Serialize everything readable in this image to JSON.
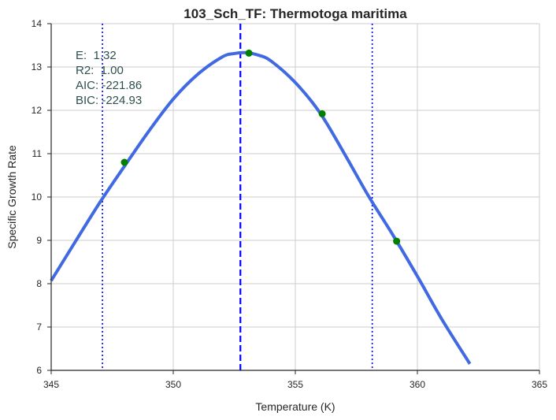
{
  "chart_data": {
    "type": "line",
    "title": "103_Sch_TF: Thermotoga maritima",
    "xlabel": "Temperature (K)",
    "ylabel": "Specific Growth Rate",
    "xlim": [
      345,
      365
    ],
    "ylim": [
      6,
      14
    ],
    "xticks": [
      "345",
      "350",
      "355",
      "360",
      "365"
    ],
    "yticks": [
      "6",
      "7",
      "8",
      "9",
      "10",
      "11",
      "12",
      "13",
      "14"
    ],
    "grid": true,
    "series": [
      {
        "kind": "fitted-curve",
        "color": "#4169e1",
        "x": [
          345.0,
          346.0,
          347.0,
          348.0,
          349.0,
          350.0,
          351.0,
          352.0,
          352.5,
          353.0,
          353.5,
          354.0,
          355.0,
          356.0,
          357.0,
          358.0,
          359.0,
          360.0,
          361.0,
          362.15
        ],
        "y": [
          8.07,
          8.98,
          9.88,
          10.71,
          11.52,
          12.26,
          12.83,
          13.23,
          13.31,
          13.33,
          13.27,
          13.14,
          12.64,
          11.95,
          11.01,
          10.02,
          9.12,
          8.17,
          7.18,
          6.15
        ]
      },
      {
        "kind": "observations",
        "color": "#008000",
        "x": [
          348.0,
          353.1,
          356.1,
          359.15
        ],
        "y": [
          10.8,
          13.32,
          11.92,
          8.98
        ]
      }
    ],
    "vlines": [
      {
        "x": 347.1,
        "style": "dotted",
        "color": "#0000ff"
      },
      {
        "x": 352.75,
        "style": "dashed",
        "color": "#0000ff"
      },
      {
        "x": 358.15,
        "style": "dotted",
        "color": "#0000ff"
      }
    ],
    "annotations": [
      "E:  1.32",
      "R2:  1.00",
      "AIC: -221.86",
      "BIC: -224.93"
    ],
    "annotation_color": "#2f4f4f"
  }
}
